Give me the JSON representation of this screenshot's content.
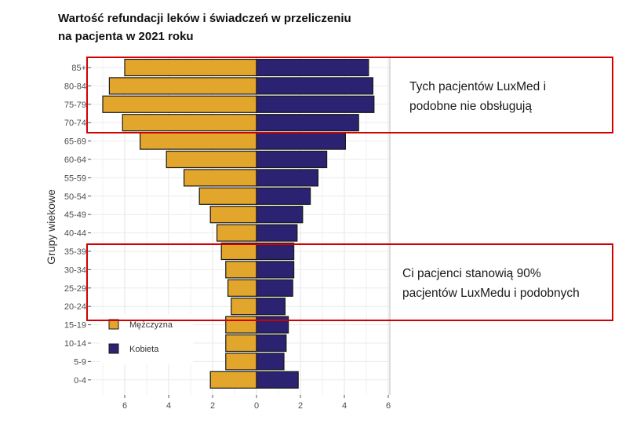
{
  "chart_data": {
    "type": "bar",
    "subtype": "population-pyramid",
    "title": "Wartość refundacji leków i świadczeń w przeliczeniu na pacjenta w 2021 roku",
    "ylabel": "Grupy wiekowe",
    "xlabel": "",
    "xlim": [
      -7.5,
      6.2
    ],
    "x_ticks": [
      -6,
      -4,
      -2,
      0,
      2,
      4,
      6
    ],
    "x_tick_labels": [
      "6",
      "4",
      "2",
      "0",
      "2",
      "4",
      "6"
    ],
    "grid": true,
    "categories": [
      "85+",
      "80-84",
      "75-79",
      "70-74",
      "65-69",
      "60-64",
      "55-59",
      "50-54",
      "45-49",
      "40-44",
      "35-39",
      "30-34",
      "25-29",
      "20-24",
      "15-19",
      "10-14",
      "5-9",
      "0-4"
    ],
    "series": [
      {
        "name": "Mężczyzna",
        "color": "#E3A62C",
        "values": [
          6.0,
          6.7,
          7.0,
          6.1,
          5.3,
          4.1,
          3.3,
          2.6,
          2.1,
          1.8,
          1.6,
          1.4,
          1.3,
          1.15,
          1.4,
          1.4,
          1.4,
          2.1
        ]
      },
      {
        "name": "Kobieta",
        "color": "#2B2272",
        "values": [
          5.1,
          5.3,
          5.35,
          4.65,
          4.05,
          3.2,
          2.8,
          2.45,
          2.1,
          1.85,
          1.7,
          1.7,
          1.65,
          1.3,
          1.45,
          1.35,
          1.25,
          1.9
        ]
      }
    ],
    "legend": {
      "position": "bottom-left",
      "entries": [
        "Mężczyzna",
        "Kobieta"
      ]
    }
  },
  "annotations": [
    {
      "text": "Tych pacjentów LuxMed i podobne nie obsługują",
      "lines": [
        "Tych pacjentów LuxMed i",
        "podobne nie obsługują"
      ],
      "color": "#D10000",
      "covers": [
        "85+",
        "70-74"
      ]
    },
    {
      "text": "Ci pacjenci stanowią 90% pacjentów LuxMedu i podobnych",
      "lines": [
        "Ci pacjenci stanowią 90%",
        "pacjentów LuxMedu i podobnych"
      ],
      "color": "#D10000",
      "covers": [
        "35-39",
        "20-24"
      ]
    }
  ]
}
